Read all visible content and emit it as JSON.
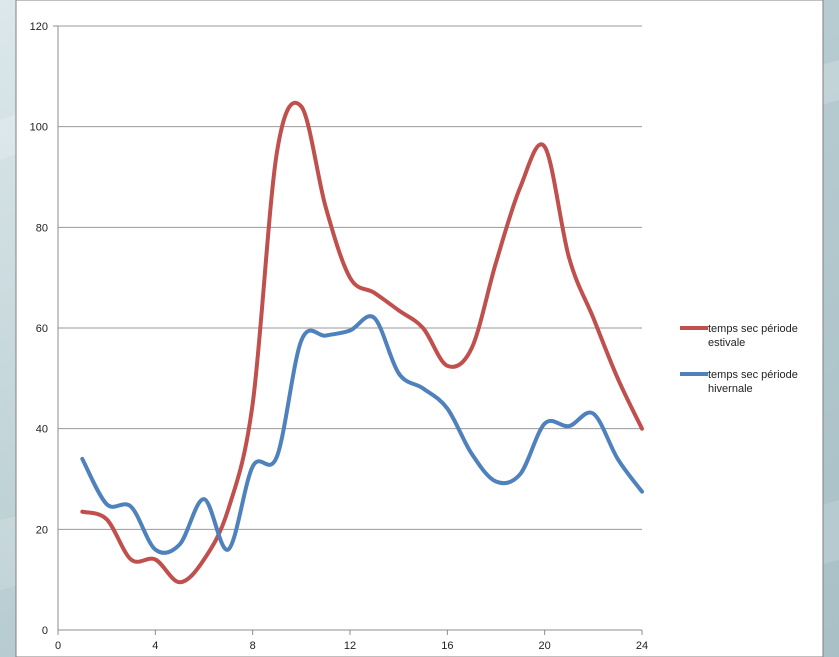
{
  "colors": {
    "page_background": "#b9cdd2",
    "chart_background": "#ffffff",
    "gridline": "#9a9a9a",
    "axis": "#8c8c8c"
  },
  "chart_data": {
    "type": "line",
    "title": "",
    "xlabel": "",
    "ylabel": "",
    "xlim": [
      0,
      24
    ],
    "ylim": [
      0,
      120
    ],
    "x_ticks": [
      "0",
      "4",
      "8",
      "12",
      "16",
      "20",
      "24"
    ],
    "y_ticks": [
      "0",
      "20",
      "40",
      "60",
      "80",
      "100",
      "120"
    ],
    "grid": "horizontal",
    "smooth": true,
    "legend_position": "right",
    "x": [
      1,
      2,
      3,
      4,
      5,
      6,
      7,
      8,
      9,
      10,
      11,
      12,
      13,
      14,
      15,
      16,
      17,
      18,
      19,
      20,
      21,
      22,
      23,
      24
    ],
    "series": [
      {
        "name": "temps sec période estivale",
        "legend_lines": [
          "temps sec période",
          "estivale"
        ],
        "color": "#c0504d",
        "values": [
          23.5,
          22,
          14,
          14,
          9.5,
          14,
          24,
          45,
          95,
          104,
          84,
          70,
          67,
          63.5,
          60,
          52.5,
          56,
          73,
          88,
          96,
          74,
          62,
          50,
          40
        ]
      },
      {
        "name": "temps sec période hivernale",
        "legend_lines": [
          "temps sec période",
          "hivernale"
        ],
        "color": "#4f81bd",
        "values": [
          34,
          25,
          24.5,
          16,
          17,
          26,
          16,
          32.5,
          34.5,
          57.5,
          58.5,
          59.5,
          62,
          51,
          48,
          44,
          35,
          29.5,
          31,
          41,
          40.5,
          43,
          34,
          27.5
        ]
      }
    ]
  }
}
